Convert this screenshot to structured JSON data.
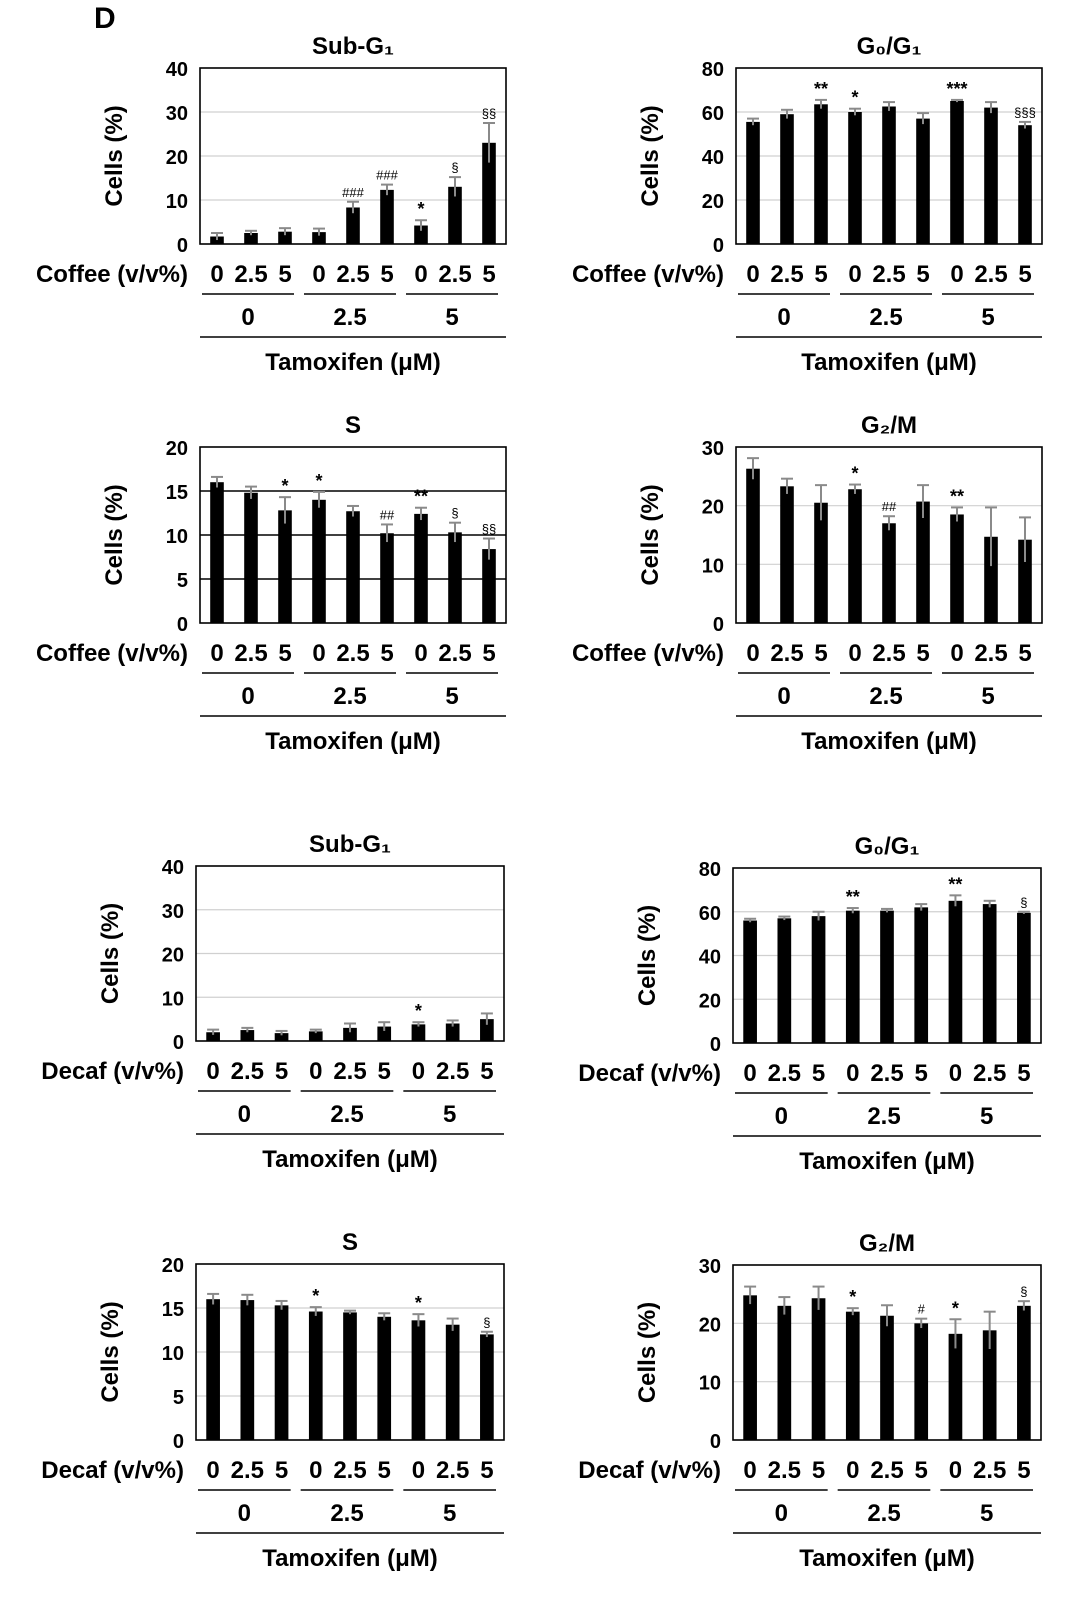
{
  "panel_label": "D",
  "y_label": "Cells (%)",
  "tamoxifen_label": "Tamoxifen (μM)",
  "coffee_label": "Coffee (v/v%)",
  "decaf_label": "Decaf (v/v%)",
  "coffee_doses": [
    "0",
    "2.5",
    "5"
  ],
  "tamoxifen_doses": [
    "0",
    "2.5",
    "5"
  ],
  "chart_data": [
    {
      "type": "bar",
      "title": "Sub-G₁",
      "ylabel": "Cells (%)",
      "ylim": [
        0,
        40
      ],
      "yticks": [
        0,
        10,
        20,
        30,
        40
      ],
      "grid": "gray",
      "treatment": "Coffee (v/v%)",
      "categories": [
        "0",
        "2.5",
        "5",
        "0",
        "2.5",
        "5",
        "0",
        "2.5",
        "5"
      ],
      "groups": [
        "0",
        "2.5",
        "5"
      ],
      "xlabel": "Tamoxifen (μM)",
      "values": [
        1.7,
        2.5,
        2.8,
        2.7,
        8.3,
        12.3,
        4.2,
        13.0,
        23.0
      ],
      "errors": [
        0.8,
        0.5,
        0.8,
        0.8,
        1.3,
        1.2,
        1.2,
        2.2,
        4.5
      ],
      "annotations": [
        "",
        "",
        "",
        "",
        "###",
        "###",
        "*",
        "§",
        "§§"
      ]
    },
    {
      "type": "bar",
      "title": "G₀/G₁",
      "ylabel": "Cells (%)",
      "ylim": [
        0,
        80
      ],
      "yticks": [
        0,
        20,
        40,
        60,
        80
      ],
      "grid": "gray",
      "treatment": "Coffee (v/v%)",
      "categories": [
        "0",
        "2.5",
        "5",
        "0",
        "2.5",
        "5",
        "0",
        "2.5",
        "5"
      ],
      "groups": [
        "0",
        "2.5",
        "5"
      ],
      "xlabel": "Tamoxifen (μM)",
      "values": [
        55.5,
        59.0,
        63.5,
        60.0,
        62.5,
        57.0,
        65.0,
        62.0,
        54.0
      ],
      "errors": [
        1.5,
        2.0,
        2.0,
        1.5,
        2.0,
        2.5,
        0.5,
        2.5,
        1.5
      ],
      "annotations": [
        "",
        "",
        "**",
        "*",
        "",
        "",
        "***",
        "",
        "§§§"
      ]
    },
    {
      "type": "bar",
      "title": "S",
      "ylabel": "Cells (%)",
      "ylim": [
        0,
        20
      ],
      "yticks": [
        0,
        5,
        10,
        15,
        20
      ],
      "grid": "black",
      "treatment": "Coffee (v/v%)",
      "categories": [
        "0",
        "2.5",
        "5",
        "0",
        "2.5",
        "5",
        "0",
        "2.5",
        "5"
      ],
      "groups": [
        "0",
        "2.5",
        "5"
      ],
      "xlabel": "Tamoxifen (μM)",
      "values": [
        16.0,
        14.8,
        12.8,
        14.0,
        12.7,
        10.2,
        12.4,
        10.3,
        8.4
      ],
      "errors": [
        0.6,
        0.7,
        1.5,
        0.9,
        0.6,
        1.0,
        0.7,
        1.1,
        1.2
      ],
      "annotations": [
        "",
        "",
        "*",
        "*",
        "",
        "##",
        "**",
        "§",
        "§§"
      ]
    },
    {
      "type": "bar",
      "title": "G₂/M",
      "ylabel": "Cells (%)",
      "ylim": [
        0,
        30
      ],
      "yticks": [
        0,
        10,
        20,
        30
      ],
      "grid": "gray",
      "treatment": "Coffee (v/v%)",
      "categories": [
        "0",
        "2.5",
        "5",
        "0",
        "2.5",
        "5",
        "0",
        "2.5",
        "5"
      ],
      "groups": [
        "0",
        "2.5",
        "5"
      ],
      "xlabel": "Tamoxifen (μM)",
      "values": [
        26.3,
        23.3,
        20.5,
        22.8,
        17.0,
        20.7,
        18.5,
        14.7,
        14.2
      ],
      "errors": [
        1.8,
        1.3,
        3.0,
        0.8,
        1.2,
        2.8,
        1.2,
        5.0,
        3.8
      ],
      "annotations": [
        "",
        "",
        "",
        "*",
        "##",
        "",
        "**",
        "",
        ""
      ]
    },
    {
      "type": "bar",
      "title": "Sub-G₁",
      "ylabel": "Cells (%)",
      "ylim": [
        0,
        40
      ],
      "yticks": [
        0,
        10,
        20,
        30,
        40
      ],
      "grid": "gray",
      "treatment": "Decaf (v/v%)",
      "categories": [
        "0",
        "2.5",
        "5",
        "0",
        "2.5",
        "5",
        "0",
        "2.5",
        "5"
      ],
      "groups": [
        "0",
        "2.5",
        "5"
      ],
      "xlabel": "Tamoxifen (μM)",
      "values": [
        2.0,
        2.5,
        1.8,
        2.2,
        3.0,
        3.3,
        3.8,
        4.0,
        5.0
      ],
      "errors": [
        0.6,
        0.5,
        0.5,
        0.4,
        1.0,
        1.0,
        0.5,
        0.7,
        1.3
      ],
      "annotations": [
        "",
        "",
        "",
        "",
        "",
        "",
        "*",
        "",
        ""
      ]
    },
    {
      "type": "bar",
      "title": "G₀/G₁",
      "ylabel": "Cells (%)",
      "ylim": [
        0,
        80
      ],
      "yticks": [
        0,
        20,
        40,
        60,
        80
      ],
      "grid": "gray",
      "treatment": "Decaf (v/v%)",
      "categories": [
        "0",
        "2.5",
        "5",
        "0",
        "2.5",
        "5",
        "0",
        "2.5",
        "5"
      ],
      "groups": [
        "0",
        "2.5",
        "5"
      ],
      "xlabel": "Tamoxifen (μM)",
      "values": [
        56.0,
        57.0,
        58.0,
        60.5,
        60.5,
        62.0,
        65.0,
        63.5,
        59.5
      ],
      "errors": [
        0.8,
        0.8,
        2.0,
        1.2,
        0.8,
        1.5,
        2.5,
        1.5,
        0.5
      ],
      "annotations": [
        "",
        "",
        "",
        "**",
        "",
        "",
        "**",
        "",
        "§"
      ]
    },
    {
      "type": "bar",
      "title": "S",
      "ylabel": "Cells (%)",
      "ylim": [
        0,
        20
      ],
      "yticks": [
        0,
        5,
        10,
        15,
        20
      ],
      "grid": "gray",
      "treatment": "Decaf (v/v%)",
      "categories": [
        "0",
        "2.5",
        "5",
        "0",
        "2.5",
        "5",
        "0",
        "2.5",
        "5"
      ],
      "groups": [
        "0",
        "2.5",
        "5"
      ],
      "xlabel": "Tamoxifen (μM)",
      "values": [
        16.0,
        15.9,
        15.3,
        14.6,
        14.5,
        14.0,
        13.6,
        13.1,
        12.0
      ],
      "errors": [
        0.6,
        0.6,
        0.5,
        0.5,
        0.2,
        0.4,
        0.7,
        0.7,
        0.3
      ],
      "annotations": [
        "",
        "",
        "",
        "*",
        "",
        "",
        "*",
        "",
        "§"
      ]
    },
    {
      "type": "bar",
      "title": "G₂/M",
      "ylabel": "Cells (%)",
      "ylim": [
        0,
        30
      ],
      "yticks": [
        0,
        10,
        20,
        30
      ],
      "grid": "gray",
      "treatment": "Decaf (v/v%)",
      "categories": [
        "0",
        "2.5",
        "5",
        "0",
        "2.5",
        "5",
        "0",
        "2.5",
        "5"
      ],
      "groups": [
        "0",
        "2.5",
        "5"
      ],
      "xlabel": "Tamoxifen (μM)",
      "values": [
        24.8,
        23.0,
        24.3,
        22.0,
        21.3,
        20.0,
        18.2,
        18.8,
        23.0
      ],
      "errors": [
        1.5,
        1.5,
        2.0,
        0.6,
        1.8,
        0.8,
        2.5,
        3.2,
        0.8
      ],
      "annotations": [
        "",
        "",
        "",
        "*",
        "",
        "#",
        "*",
        "",
        "§"
      ]
    }
  ]
}
